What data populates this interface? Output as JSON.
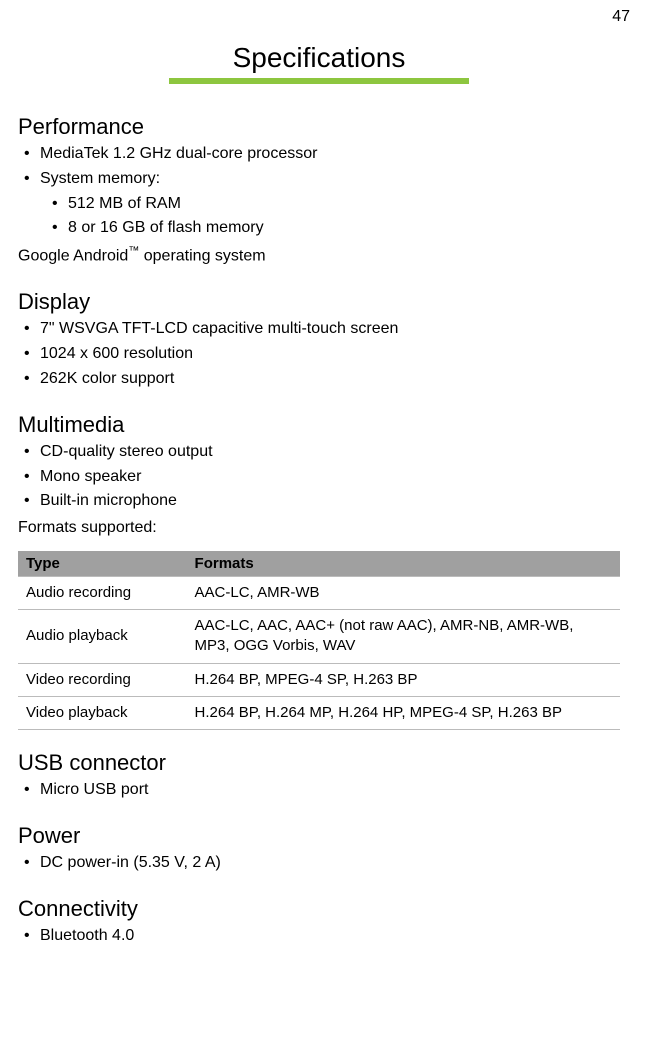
{
  "page": {
    "number": "47"
  },
  "title": "Specifications",
  "title_underline_color": "#8dc63f",
  "sections": {
    "performance": {
      "heading": "Performance",
      "item0": "MediaTek 1.2 GHz dual-core processor",
      "item1": "System memory:",
      "sub0": "512 MB of RAM",
      "sub1": "8 or 16 GB of flash memory",
      "postline_pre": "Google Android",
      "postline_sup": "™",
      "postline_post": " operating system"
    },
    "display": {
      "heading": "Display",
      "item0": "7\" WSVGA TFT-LCD capacitive multi-touch screen",
      "item1": "1024 x 600 resolution",
      "item2": "262K color support"
    },
    "multimedia": {
      "heading": "Multimedia",
      "item0": "CD-quality stereo output",
      "item1": "Mono speaker",
      "item2": "Built-in microphone",
      "postline": "Formats supported:"
    },
    "usb": {
      "heading": "USB connector",
      "item0": "Micro USB port"
    },
    "power": {
      "heading": "Power",
      "item0": "DC power-in (5.35 V, 2 A)"
    },
    "connectivity": {
      "heading": "Connectivity",
      "item0": "Bluetooth 4.0"
    }
  },
  "formats_table": {
    "header_bg": "#a0a0a0",
    "border_color": "#bbbbbb",
    "columns": {
      "c0": "Type",
      "c1": "Formats"
    },
    "rows": {
      "r0": {
        "type": "Audio recording",
        "formats": "AAC-LC, AMR-WB"
      },
      "r1": {
        "type": "Audio playback",
        "formats": "AAC-LC, AAC, AAC+ (not raw AAC), AMR-NB, AMR-WB, MP3, OGG Vorbis, WAV"
      },
      "r2": {
        "type": "Video recording",
        "formats": "H.264 BP, MPEG-4 SP, H.263 BP"
      },
      "r3": {
        "type": "Video playback",
        "formats": "H.264 BP, H.264 MP, H.264 HP, MPEG-4 SP, H.263 BP"
      }
    }
  }
}
